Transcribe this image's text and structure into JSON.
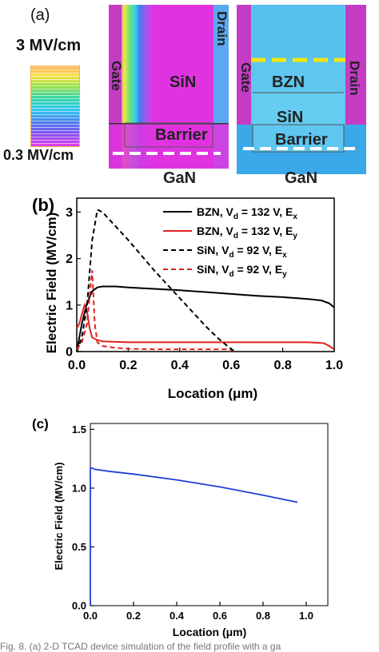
{
  "panel_a": {
    "letter": "(a)",
    "scale_max": "3 MV/cm",
    "scale_min": "0.3 MV/cm",
    "left_sim": {
      "gate": "Gate",
      "drain": "Drain",
      "layer": "SiN",
      "barrier": "Barrier",
      "substrate": "GaN"
    },
    "right_sim": {
      "gate": "Gate",
      "drain": "Drain",
      "layer_top": "BZN",
      "layer_mid": "SiN",
      "barrier": "Barrier",
      "substrate": "GaN"
    },
    "colors": {
      "magenta": "#e033e0",
      "cyan": "#33d0f0",
      "sky": "#5ec6ef",
      "gate_stripe": "#c43cc4",
      "yellow_dash": "#f5e60a"
    }
  },
  "chart_data": [
    {
      "panel": "(b)",
      "type": "line",
      "xlabel": "Location (μm)",
      "ylabel": "Electric Field (MV/cm)",
      "xlim": [
        0.0,
        1.0
      ],
      "ylim": [
        0,
        3.3
      ],
      "xticks": [
        "0.0",
        "0.2",
        "0.4",
        "0.6",
        "0.8",
        "1.0"
      ],
      "yticks": [
        "0",
        "1",
        "2",
        "3"
      ],
      "legend_position": "top-right",
      "series": [
        {
          "name": "BZN, V_d = 132 V, E_x",
          "legend_main": "BZN, V",
          "legend_sub1": "d",
          "legend_mid": " = 132 V, E",
          "legend_sub2": "x",
          "color": "#000000",
          "dash": "solid",
          "x": [
            0.0,
            0.01,
            0.02,
            0.04,
            0.06,
            0.08,
            0.1,
            0.15,
            0.2,
            0.3,
            0.4,
            0.5,
            0.6,
            0.7,
            0.8,
            0.9,
            0.95,
            0.98,
            1.0
          ],
          "y": [
            0.0,
            0.3,
            0.6,
            1.05,
            1.3,
            1.38,
            1.4,
            1.4,
            1.38,
            1.35,
            1.32,
            1.28,
            1.24,
            1.2,
            1.17,
            1.13,
            1.1,
            1.04,
            0.95
          ]
        },
        {
          "name": "BZN, V_d = 132 V, E_y",
          "legend_main": "BZN, V",
          "legend_sub1": "d",
          "legend_mid": " = 132 V, E",
          "legend_sub2": "y",
          "color": "#e02020",
          "dash": "solid",
          "x": [
            0.0,
            0.005,
            0.01,
            0.02,
            0.03,
            0.04,
            0.05,
            0.06,
            0.08,
            0.1,
            0.2,
            0.4,
            0.6,
            0.8,
            0.9,
            0.96,
            0.98,
            1.0
          ],
          "y": [
            0.5,
            0.55,
            0.6,
            0.8,
            1.0,
            0.85,
            0.5,
            0.3,
            0.25,
            0.22,
            0.2,
            0.2,
            0.2,
            0.2,
            0.2,
            0.18,
            0.12,
            0.05
          ]
        },
        {
          "name": "SiN, V_d = 92 V, E_x",
          "legend_main": "SiN, V",
          "legend_sub1": "d",
          "legend_mid": " = 92 V, E",
          "legend_sub2": "x",
          "color": "#000000",
          "dash": "dashed",
          "x": [
            0.0,
            0.02,
            0.04,
            0.06,
            0.08,
            0.1,
            0.15,
            0.2,
            0.3,
            0.4,
            0.5,
            0.55,
            0.6,
            0.62
          ],
          "y": [
            0.0,
            0.3,
            1.0,
            2.4,
            3.05,
            3.0,
            2.7,
            2.4,
            1.75,
            1.15,
            0.55,
            0.28,
            0.05,
            0.0
          ]
        },
        {
          "name": "SiN, V_d = 92 V, E_y",
          "legend_main": "SiN, V",
          "legend_sub1": "d",
          "legend_mid": " = 92 V, E",
          "legend_sub2": "y",
          "color": "#e02020",
          "dash": "dashed",
          "x": [
            0.0,
            0.02,
            0.04,
            0.05,
            0.06,
            0.07,
            0.08,
            0.1,
            0.15,
            0.2,
            0.3,
            0.4,
            0.5,
            0.58,
            0.6
          ],
          "y": [
            0.05,
            0.2,
            0.6,
            1.2,
            1.75,
            0.6,
            0.2,
            0.12,
            0.08,
            0.06,
            0.05,
            0.05,
            0.05,
            0.05,
            0.0
          ]
        }
      ]
    },
    {
      "panel": "(c)",
      "type": "line",
      "xlabel": "Location (μm)",
      "ylabel": "Electric Field (MV/cm)",
      "xlim": [
        0.0,
        1.1
      ],
      "ylim": [
        0.0,
        1.55
      ],
      "xticks": [
        "0.0",
        "0.2",
        "0.4",
        "0.6",
        "0.8",
        "1.0"
      ],
      "yticks": [
        "0.0",
        "0.5",
        "1.0",
        "1.5"
      ],
      "series": [
        {
          "color": "#1f3fd6",
          "dash": "solid",
          "x": [
            0.0,
            0.0,
            0.01,
            0.02,
            0.1,
            0.2,
            0.4,
            0.6,
            0.8,
            0.96
          ],
          "y": [
            0.0,
            1.17,
            1.17,
            1.16,
            1.14,
            1.12,
            1.07,
            1.01,
            0.94,
            0.88
          ]
        }
      ]
    }
  ],
  "caption": "Fig. 8.   (a) 2-D TCAD device simulation of the field profile with a ga"
}
